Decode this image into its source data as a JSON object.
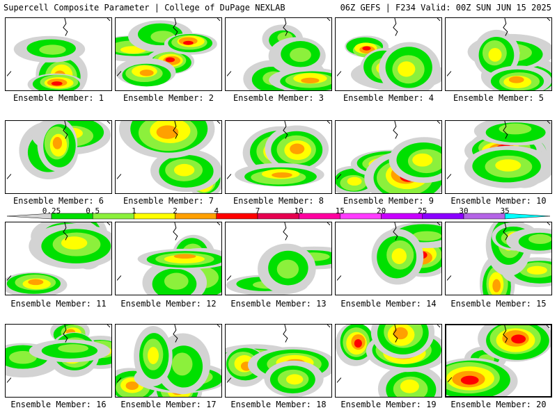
{
  "header": {
    "left": "Supercell Composite Parameter | College of DuPage NEXLAB",
    "right": "06Z GEFS | F234 Valid: 00Z SUN JUN 15 2025"
  },
  "caption_prefix": "Ensemble Member: ",
  "selected_member": 20,
  "members": [
    1,
    2,
    3,
    4,
    5,
    6,
    7,
    8,
    9,
    10,
    11,
    12,
    13,
    14,
    15,
    16,
    17,
    18,
    19,
    20
  ],
  "colorbar": {
    "labels": [
      "0.25",
      "0.5",
      "1",
      "2",
      "4",
      "7",
      "10",
      "15",
      "20",
      "25",
      "30",
      "35"
    ],
    "colors": [
      "#d3d3d3",
      "#00e000",
      "#8cf03c",
      "#ffff00",
      "#ffa000",
      "#ff0000",
      "#e60050",
      "#ff00a0",
      "#ff3cff",
      "#c800ff",
      "#8c00ff",
      "#b464e6",
      "#00ffff"
    ]
  },
  "legend_scale": {
    "0": "#d3d3d3",
    "1": "#00e000",
    "2": "#8cf03c",
    "3": "#ffff00",
    "4": "#ffa000",
    "5": "#ff0000"
  }
}
